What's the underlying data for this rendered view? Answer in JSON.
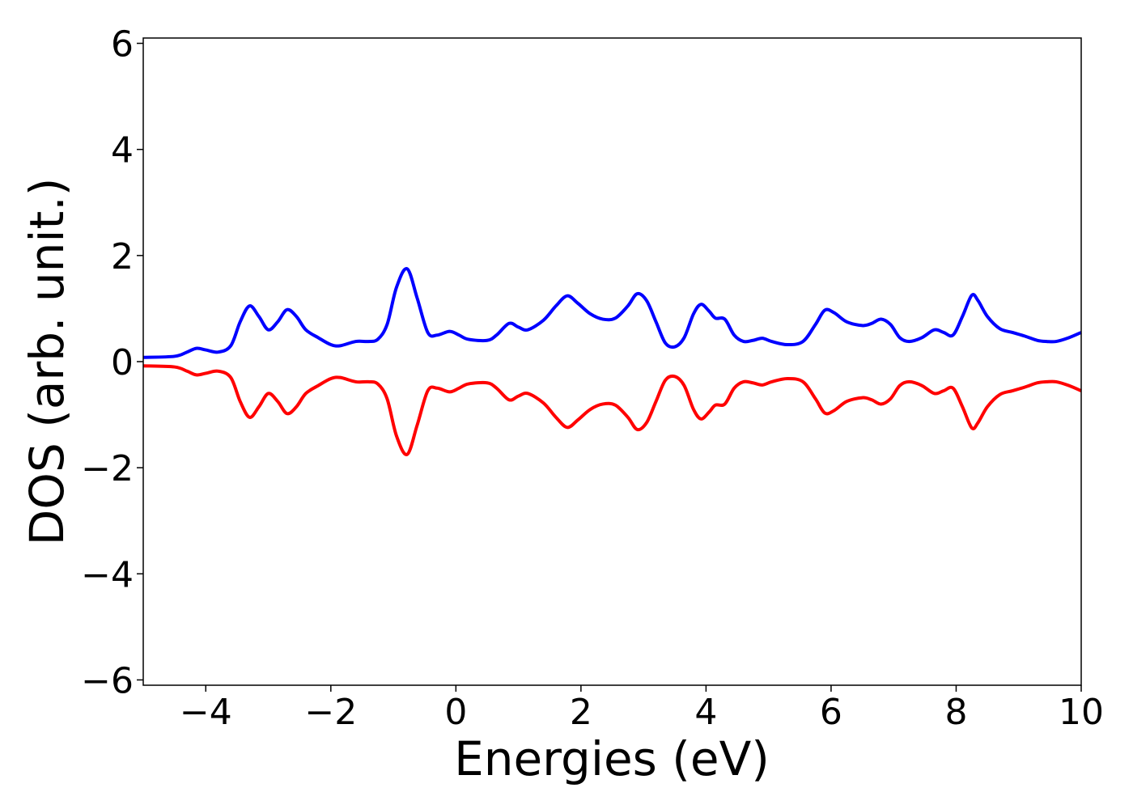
{
  "chart_data": {
    "type": "line",
    "title": "",
    "xlabel": "Energies (eV)",
    "ylabel": "DOS (arb. unit.)",
    "xlim": [
      -5,
      10
    ],
    "ylim": [
      -6.1,
      6.1
    ],
    "xticks": [
      -4,
      -2,
      0,
      2,
      4,
      6,
      8,
      10
    ],
    "yticks": [
      -6,
      -4,
      -2,
      0,
      2,
      4,
      6
    ],
    "xtick_labels": [
      "−4",
      "−2",
      "0",
      "2",
      "4",
      "6",
      "8",
      "10"
    ],
    "ytick_labels": [
      "−6",
      "−4",
      "−2",
      "0",
      "2",
      "4",
      "6"
    ],
    "grid": false,
    "legend": null,
    "series": [
      {
        "color": "#0000ff",
        "x": [
          -5.0,
          -4.5,
          -4.3,
          -4.15,
          -4.0,
          -3.8,
          -3.6,
          -3.45,
          -3.3,
          -3.15,
          -3.0,
          -2.85,
          -2.7,
          -2.55,
          -2.4,
          -2.2,
          -2.0,
          -1.85,
          -1.6,
          -1.4,
          -1.25,
          -1.1,
          -0.95,
          -0.78,
          -0.62,
          -0.45,
          -0.3,
          -0.1,
          0.05,
          0.2,
          0.5,
          0.65,
          0.85,
          1.0,
          1.15,
          1.4,
          1.6,
          1.78,
          1.95,
          2.15,
          2.35,
          2.55,
          2.75,
          2.9,
          3.05,
          3.2,
          3.35,
          3.5,
          3.65,
          3.8,
          3.92,
          4.05,
          4.15,
          4.3,
          4.45,
          4.6,
          4.75,
          4.9,
          5.05,
          5.3,
          5.55,
          5.75,
          5.9,
          6.05,
          6.25,
          6.5,
          6.65,
          6.8,
          6.95,
          7.1,
          7.25,
          7.45,
          7.65,
          7.8,
          7.95,
          8.1,
          8.25,
          8.35,
          8.5,
          8.7,
          8.9,
          9.1,
          9.3,
          9.45,
          9.6,
          9.8,
          10.0
        ],
        "y": [
          0.08,
          0.1,
          0.18,
          0.25,
          0.22,
          0.18,
          0.3,
          0.75,
          1.05,
          0.85,
          0.6,
          0.75,
          0.98,
          0.85,
          0.6,
          0.45,
          0.32,
          0.3,
          0.38,
          0.38,
          0.42,
          0.7,
          1.4,
          1.75,
          1.2,
          0.55,
          0.5,
          0.57,
          0.5,
          0.42,
          0.4,
          0.5,
          0.72,
          0.65,
          0.6,
          0.78,
          1.05,
          1.24,
          1.1,
          0.9,
          0.8,
          0.82,
          1.05,
          1.28,
          1.15,
          0.75,
          0.35,
          0.28,
          0.45,
          0.9,
          1.08,
          0.95,
          0.82,
          0.8,
          0.5,
          0.38,
          0.4,
          0.44,
          0.38,
          0.32,
          0.38,
          0.7,
          0.97,
          0.92,
          0.75,
          0.68,
          0.72,
          0.8,
          0.7,
          0.45,
          0.38,
          0.45,
          0.6,
          0.55,
          0.5,
          0.85,
          1.25,
          1.15,
          0.85,
          0.62,
          0.55,
          0.48,
          0.4,
          0.38,
          0.38,
          0.45,
          0.55
        ]
      },
      {
        "color": "#ff0000",
        "x": [
          -5.0,
          -4.5,
          -4.3,
          -4.15,
          -4.0,
          -3.8,
          -3.6,
          -3.45,
          -3.3,
          -3.15,
          -3.0,
          -2.85,
          -2.7,
          -2.55,
          -2.4,
          -2.2,
          -2.0,
          -1.85,
          -1.6,
          -1.4,
          -1.25,
          -1.1,
          -0.95,
          -0.78,
          -0.62,
          -0.45,
          -0.3,
          -0.1,
          0.05,
          0.2,
          0.5,
          0.65,
          0.85,
          1.0,
          1.15,
          1.4,
          1.6,
          1.78,
          1.95,
          2.15,
          2.35,
          2.55,
          2.75,
          2.9,
          3.05,
          3.2,
          3.35,
          3.5,
          3.65,
          3.8,
          3.92,
          4.05,
          4.15,
          4.3,
          4.45,
          4.6,
          4.75,
          4.9,
          5.05,
          5.3,
          5.55,
          5.75,
          5.9,
          6.05,
          6.25,
          6.5,
          6.65,
          6.8,
          6.95,
          7.1,
          7.25,
          7.45,
          7.65,
          7.8,
          7.95,
          8.1,
          8.25,
          8.35,
          8.5,
          8.7,
          8.9,
          9.1,
          9.3,
          9.45,
          9.6,
          9.8,
          10.0
        ],
        "y": [
          -0.08,
          -0.1,
          -0.18,
          -0.25,
          -0.22,
          -0.18,
          -0.3,
          -0.75,
          -1.05,
          -0.85,
          -0.6,
          -0.75,
          -0.98,
          -0.85,
          -0.6,
          -0.45,
          -0.32,
          -0.3,
          -0.38,
          -0.38,
          -0.42,
          -0.7,
          -1.4,
          -1.75,
          -1.2,
          -0.55,
          -0.5,
          -0.57,
          -0.5,
          -0.42,
          -0.4,
          -0.5,
          -0.72,
          -0.65,
          -0.6,
          -0.78,
          -1.05,
          -1.24,
          -1.1,
          -0.9,
          -0.8,
          -0.82,
          -1.05,
          -1.28,
          -1.15,
          -0.75,
          -0.35,
          -0.28,
          -0.45,
          -0.9,
          -1.08,
          -0.95,
          -0.82,
          -0.8,
          -0.5,
          -0.38,
          -0.4,
          -0.44,
          -0.38,
          -0.32,
          -0.38,
          -0.7,
          -0.97,
          -0.92,
          -0.75,
          -0.68,
          -0.72,
          -0.8,
          -0.7,
          -0.45,
          -0.38,
          -0.45,
          -0.6,
          -0.55,
          -0.5,
          -0.85,
          -1.25,
          -1.15,
          -0.85,
          -0.62,
          -0.55,
          -0.48,
          -0.4,
          -0.38,
          -0.38,
          -0.45,
          -0.55
        ]
      }
    ]
  }
}
